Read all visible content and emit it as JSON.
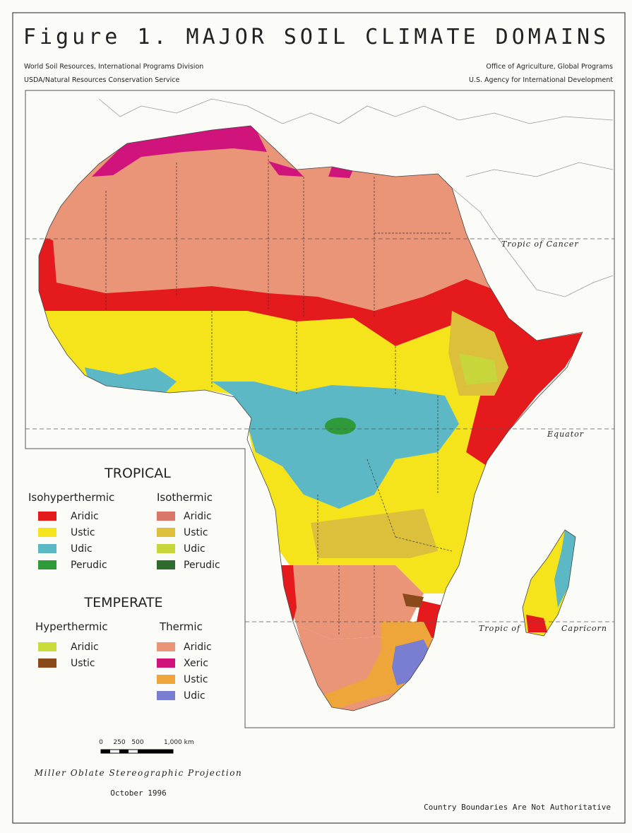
{
  "header": {
    "title": "Figure 1. MAJOR SOIL CLIMATE DOMAINS",
    "left_credits": [
      "World Soil Resources, International Programs Division",
      "USDA/Natural Resources Conservation Service"
    ],
    "right_credits": [
      "Office of Agriculture, Global Programs",
      "U.S. Agency for International Development"
    ]
  },
  "map": {
    "labels": {
      "cancer": "Tropic of Cancer",
      "equator": "Equator",
      "capricorn_1": "Tropic of",
      "capricorn_2": "Capricorn"
    }
  },
  "legend": {
    "groups": [
      {
        "title": "TROPICAL",
        "columns": [
          {
            "heading": "Isohyperthermic",
            "items": [
              {
                "label": "Aridic",
                "color": "#e41a1c"
              },
              {
                "label": "Ustic",
                "color": "#f5e31c"
              },
              {
                "label": "Udic",
                "color": "#5bb8c4"
              },
              {
                "label": "Perudic",
                "color": "#2f9a3a"
              }
            ]
          },
          {
            "heading": "Isothermic",
            "items": [
              {
                "label": "Aridic",
                "color": "#d9776a"
              },
              {
                "label": "Ustic",
                "color": "#dcc03c"
              },
              {
                "label": "Udic",
                "color": "#c7d63a"
              },
              {
                "label": "Perudic",
                "color": "#2e6b2c"
              }
            ]
          }
        ]
      },
      {
        "title": "TEMPERATE",
        "columns": [
          {
            "heading": "Hyperthermic",
            "items": [
              {
                "label": "Aridic",
                "color": "#c9dc3a"
              },
              {
                "label": "Ustic",
                "color": "#8a4a1c"
              }
            ]
          },
          {
            "heading": "Thermic",
            "items": [
              {
                "label": "Aridic",
                "color": "#ea9478"
              },
              {
                "label": "Xeric",
                "color": "#d0147c"
              },
              {
                "label": "Ustic",
                "color": "#eea63a"
              },
              {
                "label": "Udic",
                "color": "#7a7ed0"
              }
            ]
          }
        ]
      }
    ]
  },
  "scale_bar": {
    "labels": [
      "0",
      "250",
      "500",
      "1,000 km"
    ]
  },
  "footer": {
    "projection": "Miller Oblate Stereographic Projection",
    "date": "October 1996",
    "note": "Country Boundaries Are Not Authoritative"
  }
}
